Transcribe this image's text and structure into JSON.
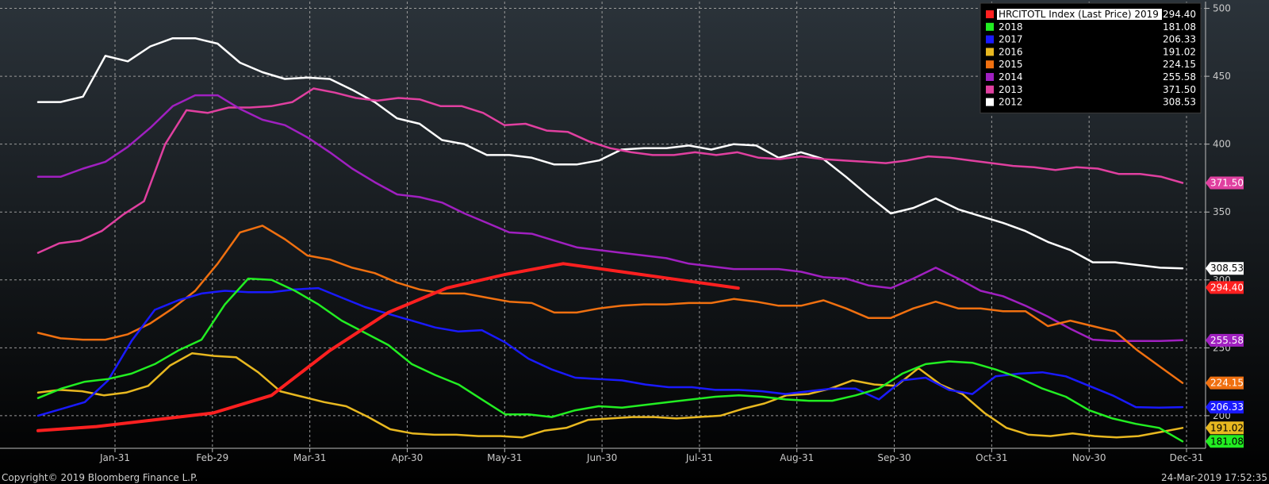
{
  "chart_data": {
    "type": "line",
    "x_ticks": [
      "Jan-31",
      "Feb-29",
      "Mar-31",
      "Apr-30",
      "May-31",
      "Jun-30",
      "Jul-31",
      "Aug-31",
      "Sep-30",
      "Oct-31",
      "Nov-30",
      "Dec-31"
    ],
    "y_ticks": [
      200,
      250,
      300,
      350,
      400,
      450,
      500
    ],
    "ylim": [
      176,
      505
    ],
    "grid": true,
    "legend_position": "top-right",
    "series": [
      {
        "name": "HRCITOTL Index (Last Price) 2019",
        "legend_value": "294.40",
        "color": "#ff2020",
        "width": 4,
        "values": [
          189,
          192,
          197,
          202,
          215,
          248,
          276,
          294,
          304,
          312,
          306,
          300,
          294
        ]
      },
      {
        "name": "2018",
        "legend_value": "181.08",
        "color": "#22ee22",
        "width": 2.5,
        "values": [
          213,
          220,
          225,
          227,
          231,
          238,
          248,
          256,
          282,
          301,
          300,
          292,
          282,
          270,
          261,
          252,
          238,
          230,
          223,
          212,
          201,
          201,
          199,
          204,
          207,
          206,
          208,
          210,
          212,
          214,
          215,
          214,
          212,
          211,
          211,
          215,
          220,
          231,
          238,
          240,
          239,
          234,
          228,
          220,
          214,
          204,
          198,
          194,
          191,
          181.08
        ]
      },
      {
        "name": "2017",
        "legend_value": "206.33",
        "color": "#1a1aff",
        "width": 2.5,
        "values": [
          200,
          205,
          210,
          226,
          255,
          278,
          285,
          290,
          292,
          291,
          291,
          293,
          294,
          287,
          280,
          275,
          270,
          265,
          262,
          263,
          254,
          242,
          234,
          228,
          227,
          226,
          223,
          221,
          221,
          219,
          219,
          218,
          216,
          218,
          220,
          220,
          212,
          226,
          228,
          219,
          216,
          229,
          231,
          232,
          229,
          222,
          215,
          206.33,
          206,
          206.33
        ]
      },
      {
        "name": "2016",
        "legend_value": "191.02",
        "color": "#e8b820",
        "width": 2.5,
        "values": [
          217,
          219,
          218,
          215,
          217,
          222,
          237,
          246,
          244,
          243,
          232,
          218,
          214,
          210,
          207,
          199,
          190,
          187,
          186,
          186,
          185,
          185,
          184,
          189,
          191,
          197,
          198,
          199,
          199,
          198,
          199,
          200,
          205,
          209,
          215,
          216,
          220,
          226,
          223,
          222,
          235,
          223,
          216,
          202,
          191,
          186,
          185,
          187,
          185,
          184,
          185,
          188,
          191.02
        ]
      },
      {
        "name": "2015",
        "legend_value": "224.15",
        "color": "#f07010",
        "width": 2.5,
        "values": [
          261,
          257,
          256,
          256,
          260,
          268,
          279,
          292,
          312,
          335,
          340,
          330,
          318,
          315,
          309,
          305,
          298,
          293,
          290,
          290,
          287,
          284,
          283,
          276,
          276,
          279,
          281,
          282,
          282,
          283,
          283,
          286,
          284,
          281,
          281,
          285,
          279,
          272,
          272,
          279,
          284,
          279,
          279,
          277,
          277,
          266,
          270,
          266,
          262,
          248,
          236,
          224.15
        ]
      },
      {
        "name": "2014",
        "legend_value": "255.58",
        "color": "#a020c0",
        "width": 2.5,
        "values": [
          376,
          376,
          382,
          387,
          398,
          412,
          428,
          436,
          436,
          426,
          418,
          414,
          405,
          394,
          382,
          372,
          363,
          361,
          357,
          349,
          342,
          335,
          334,
          329,
          324,
          322,
          320,
          318,
          316,
          312,
          310,
          308,
          308,
          308,
          306,
          302,
          301,
          296,
          294,
          301,
          309,
          301,
          292,
          288,
          281,
          273,
          264,
          256,
          255,
          255,
          255,
          255.58
        ]
      },
      {
        "name": "2013",
        "legend_value": "371.50",
        "color": "#e040a0",
        "width": 2.5,
        "values": [
          320,
          327,
          329,
          336,
          348,
          358,
          400,
          425,
          423,
          427,
          427,
          428,
          431,
          441,
          438,
          434,
          432,
          434,
          433,
          428,
          428,
          423,
          414,
          415,
          410,
          409,
          402,
          397,
          394,
          392,
          392,
          394,
          392,
          394,
          390,
          389,
          391,
          389,
          388,
          387,
          386,
          388,
          391,
          390,
          388,
          386,
          384,
          383,
          381,
          383,
          382,
          378,
          378,
          376,
          371.5
        ]
      },
      {
        "name": "2012",
        "legend_value": "308.53",
        "color": "#ffffff",
        "width": 2.5,
        "values": [
          431,
          431,
          435,
          465,
          461,
          472,
          478,
          478,
          474,
          460,
          453,
          448,
          449,
          448,
          440,
          431,
          419,
          415,
          403,
          400,
          392,
          392,
          390,
          385,
          385,
          388,
          396,
          397,
          397,
          399,
          396,
          400,
          399,
          390,
          394,
          389,
          376,
          362,
          349,
          353,
          360,
          352,
          347,
          342,
          336,
          328,
          322,
          313,
          313,
          311,
          309,
          308.53
        ]
      }
    ],
    "y_axis_tags": [
      "371.50",
      "308.53",
      "294.40",
      "255.58",
      "224.15",
      "206.33",
      "191.02",
      "181.08"
    ],
    "footer_left": "Copyright© 2019 Bloomberg Finance L.P.",
    "footer_right": "24-Mar-2019 17:52:35"
  },
  "colors": {
    "background_top": "#2b333a",
    "background_bottom": "#000000",
    "grid": "#9a9a9a"
  }
}
